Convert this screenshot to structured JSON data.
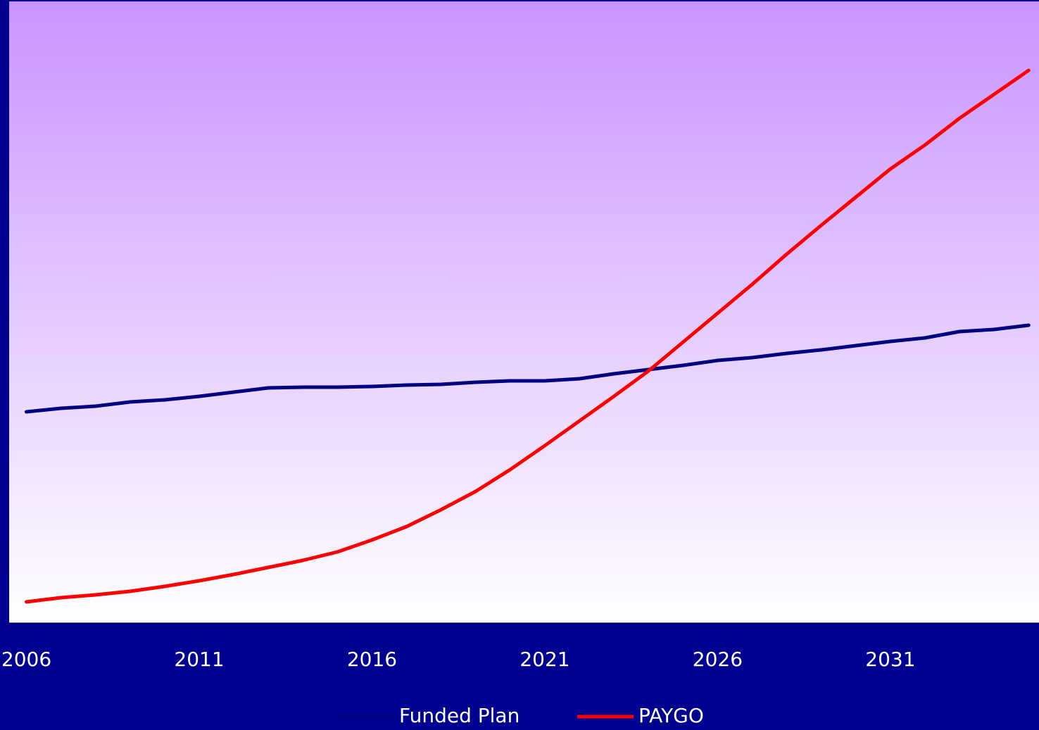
{
  "chart_data": {
    "type": "line",
    "x": [
      2006,
      2007,
      2008,
      2009,
      2010,
      2011,
      2012,
      2013,
      2014,
      2015,
      2016,
      2017,
      2018,
      2019,
      2020,
      2021,
      2022,
      2023,
      2024,
      2025,
      2026,
      2027,
      2028,
      2029,
      2030,
      2031,
      2032,
      2033,
      2034,
      2035
    ],
    "series": [
      {
        "name": "Funded Plan",
        "color": "#000080",
        "values": [
          300,
          305,
          308,
          314,
          317,
          322,
          328,
          334,
          335,
          335,
          336,
          338,
          339,
          342,
          344,
          344,
          347,
          354,
          360,
          366,
          373,
          377,
          383,
          388,
          394,
          400,
          405,
          414,
          417,
          423
        ]
      },
      {
        "name": "PAYGO",
        "color": "#ff0000",
        "values": [
          30,
          36,
          40,
          45,
          52,
          60,
          69,
          79,
          89,
          101,
          118,
          137,
          161,
          187,
          218,
          252,
          287,
          322,
          358,
          399,
          440,
          481,
          524,
          565,
          605,
          645,
          679,
          717,
          751,
          785
        ]
      }
    ],
    "xlim": [
      2005.5,
      2035.3
    ],
    "xticks": [
      2006,
      2011,
      2016,
      2021,
      2026,
      2031
    ],
    "ylim": [
      0,
      883
    ],
    "legend": "bottom"
  }
}
